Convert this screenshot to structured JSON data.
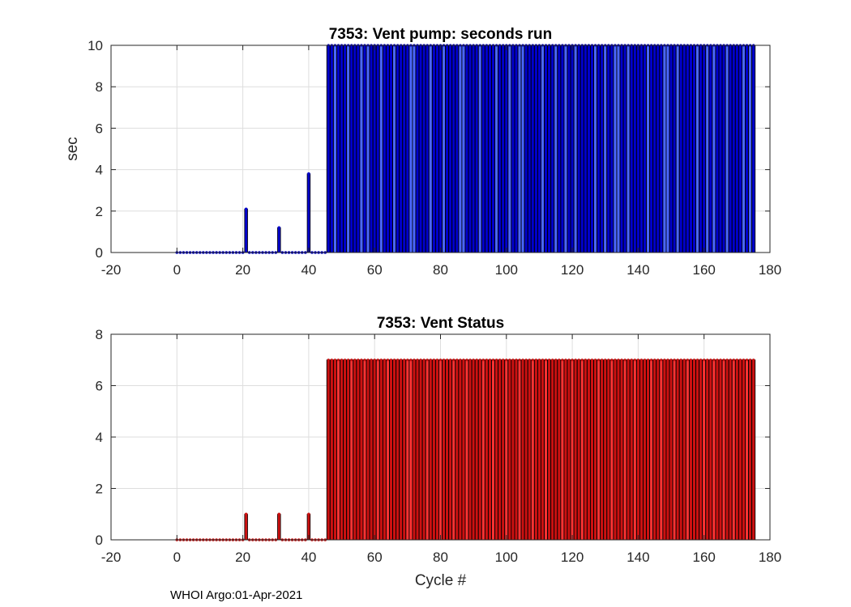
{
  "footer": "WHOI Argo:01-Apr-2021",
  "chart_data": [
    {
      "type": "bar",
      "title": "7353: Vent pump: seconds run",
      "xlabel": "",
      "ylabel": "sec",
      "xlim": [
        -20,
        180
      ],
      "ylim": [
        0,
        10
      ],
      "xticks": [
        -20,
        0,
        20,
        40,
        60,
        80,
        100,
        120,
        140,
        160,
        180
      ],
      "yticks": [
        0,
        2,
        4,
        6,
        8,
        10
      ],
      "grid": true,
      "color": "#0000cc",
      "highlight_color": "#4a66ff",
      "spikes": [
        {
          "x": 21,
          "y": 2.1
        },
        {
          "x": 31,
          "y": 1.2
        },
        {
          "x": 40,
          "y": 3.8
        }
      ],
      "zero_ranges": [
        [
          0,
          20
        ],
        [
          22,
          30
        ],
        [
          32,
          39
        ],
        [
          41,
          45
        ]
      ],
      "full_range": [
        46,
        175
      ],
      "full_value": 10,
      "highlight_cycles": [
        48,
        52,
        56,
        58,
        62,
        66,
        71,
        72,
        77,
        81,
        86,
        87,
        92,
        97,
        101,
        104,
        105,
        111,
        115,
        118,
        121,
        127,
        130,
        133,
        134,
        137,
        143,
        148,
        149,
        152,
        158,
        161,
        163,
        167,
        172,
        174
      ]
    },
    {
      "type": "bar",
      "title": "7353: Vent Status",
      "xlabel": "Cycle #",
      "ylabel": "",
      "xlim": [
        -20,
        180
      ],
      "ylim": [
        0,
        8
      ],
      "xticks": [
        -20,
        0,
        20,
        40,
        60,
        80,
        100,
        120,
        140,
        160,
        180
      ],
      "yticks": [
        0,
        2,
        4,
        6,
        8
      ],
      "grid": true,
      "color": "#cc1111",
      "highlight_color": "#ff3333",
      "spikes": [
        {
          "x": 21,
          "y": 1
        },
        {
          "x": 31,
          "y": 1
        },
        {
          "x": 40,
          "y": 1
        }
      ],
      "zero_ranges": [
        [
          0,
          20
        ],
        [
          22,
          30
        ],
        [
          32,
          39
        ],
        [
          41,
          45
        ]
      ],
      "full_range": [
        46,
        175
      ],
      "full_value": 7,
      "highlight_cycles": [
        49,
        53,
        57,
        61,
        64,
        70,
        71,
        76,
        80,
        84,
        88,
        93,
        96,
        100,
        104,
        108,
        112,
        117,
        120,
        123,
        128,
        132,
        136,
        139,
        144,
        147,
        151,
        155,
        160,
        163,
        166,
        169,
        173
      ]
    }
  ]
}
